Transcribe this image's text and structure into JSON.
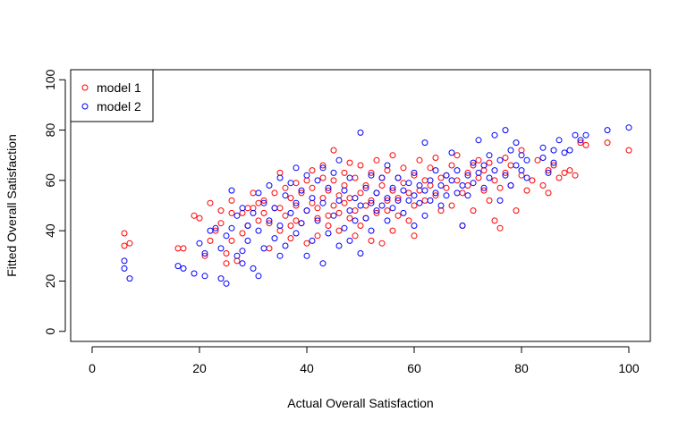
{
  "chart_data": {
    "type": "scatter",
    "title": "",
    "xlabel": "Actual Overall Satisfaction",
    "ylabel": "Fitted Overall Satisfaction",
    "xlim": [
      -4,
      104
    ],
    "ylim": [
      -4,
      104
    ],
    "xticks": [
      0,
      20,
      40,
      60,
      80,
      100
    ],
    "yticks": [
      0,
      20,
      40,
      60,
      80,
      100
    ],
    "grid": false,
    "legend": {
      "position": "top-left",
      "box": true
    },
    "series": [
      {
        "name": "model 1",
        "color": "#ff0000",
        "marker": "open-circle",
        "points": [
          [
            6,
            39
          ],
          [
            6,
            34
          ],
          [
            7,
            35
          ],
          [
            16,
            33
          ],
          [
            17,
            33
          ],
          [
            19,
            46
          ],
          [
            20,
            45
          ],
          [
            21,
            30
          ],
          [
            22,
            36
          ],
          [
            22,
            51
          ],
          [
            23,
            40
          ],
          [
            24,
            43
          ],
          [
            24,
            48
          ],
          [
            25,
            31
          ],
          [
            25,
            27
          ],
          [
            26,
            36
          ],
          [
            26,
            47
          ],
          [
            26,
            52
          ],
          [
            27,
            28
          ],
          [
            28,
            39
          ],
          [
            28,
            47
          ],
          [
            29,
            49
          ],
          [
            29,
            42
          ],
          [
            30,
            55
          ],
          [
            30,
            49
          ],
          [
            31,
            51
          ],
          [
            31,
            44
          ],
          [
            32,
            47
          ],
          [
            32,
            52
          ],
          [
            33,
            33
          ],
          [
            33,
            43
          ],
          [
            34,
            49
          ],
          [
            34,
            55
          ],
          [
            35,
            63
          ],
          [
            35,
            40
          ],
          [
            35,
            49
          ],
          [
            36,
            57
          ],
          [
            36,
            46
          ],
          [
            37,
            37
          ],
          [
            37,
            53
          ],
          [
            37,
            42
          ],
          [
            38,
            59
          ],
          [
            38,
            44
          ],
          [
            38,
            50
          ],
          [
            39,
            55
          ],
          [
            39,
            43
          ],
          [
            40,
            60
          ],
          [
            40,
            48
          ],
          [
            40,
            35
          ],
          [
            41,
            51
          ],
          [
            41,
            57
          ],
          [
            41,
            64
          ],
          [
            42,
            49
          ],
          [
            42,
            45
          ],
          [
            42,
            38
          ],
          [
            43,
            61
          ],
          [
            43,
            53
          ],
          [
            43,
            66
          ],
          [
            44,
            46
          ],
          [
            44,
            56
          ],
          [
            44,
            42
          ],
          [
            45,
            72
          ],
          [
            45,
            50
          ],
          [
            45,
            60
          ],
          [
            46,
            54
          ],
          [
            46,
            40
          ],
          [
            46,
            47
          ],
          [
            47,
            58
          ],
          [
            47,
            63
          ],
          [
            47,
            51
          ],
          [
            48,
            45
          ],
          [
            48,
            67
          ],
          [
            48,
            53
          ],
          [
            49,
            61
          ],
          [
            49,
            48
          ],
          [
            49,
            38
          ],
          [
            50,
            55
          ],
          [
            50,
            66
          ],
          [
            50,
            42
          ],
          [
            51,
            50
          ],
          [
            51,
            58
          ],
          [
            51,
            45
          ],
          [
            52,
            63
          ],
          [
            52,
            52
          ],
          [
            52,
            36
          ],
          [
            53,
            68
          ],
          [
            53,
            55
          ],
          [
            53,
            47
          ],
          [
            54,
            61
          ],
          [
            54,
            58
          ],
          [
            54,
            35
          ],
          [
            55,
            48
          ],
          [
            55,
            64
          ],
          [
            55,
            52
          ],
          [
            56,
            56
          ],
          [
            56,
            70
          ],
          [
            56,
            40
          ],
          [
            57,
            53
          ],
          [
            57,
            61
          ],
          [
            57,
            46
          ],
          [
            58,
            65
          ],
          [
            58,
            59
          ],
          [
            59,
            55
          ],
          [
            59,
            44
          ],
          [
            60,
            62
          ],
          [
            60,
            50
          ],
          [
            60,
            38
          ],
          [
            61,
            68
          ],
          [
            61,
            56
          ],
          [
            62,
            60
          ],
          [
            62,
            52
          ],
          [
            63,
            65
          ],
          [
            63,
            58
          ],
          [
            64,
            54
          ],
          [
            64,
            69
          ],
          [
            65,
            61
          ],
          [
            65,
            48
          ],
          [
            66,
            62
          ],
          [
            66,
            57
          ],
          [
            67,
            66
          ],
          [
            67,
            50
          ],
          [
            68,
            60
          ],
          [
            68,
            70
          ],
          [
            69,
            55
          ],
          [
            69,
            42
          ],
          [
            70,
            63
          ],
          [
            70,
            58
          ],
          [
            71,
            66
          ],
          [
            71,
            48
          ],
          [
            72,
            61
          ],
          [
            72,
            68
          ],
          [
            73,
            64
          ],
          [
            73,
            56
          ],
          [
            74,
            67
          ],
          [
            74,
            52
          ],
          [
            75,
            44
          ],
          [
            75,
            60
          ],
          [
            76,
            41
          ],
          [
            76,
            57
          ],
          [
            77,
            63
          ],
          [
            77,
            69
          ],
          [
            78,
            58
          ],
          [
            78,
            66
          ],
          [
            79,
            48
          ],
          [
            80,
            62
          ],
          [
            80,
            72
          ],
          [
            81,
            56
          ],
          [
            82,
            60
          ],
          [
            83,
            68
          ],
          [
            84,
            58
          ],
          [
            85,
            55
          ],
          [
            85,
            64
          ],
          [
            86,
            66
          ],
          [
            87,
            61
          ],
          [
            88,
            63
          ],
          [
            89,
            64
          ],
          [
            90,
            62
          ],
          [
            91,
            75
          ],
          [
            92,
            74
          ],
          [
            96,
            75
          ],
          [
            100,
            72
          ]
        ]
      },
      {
        "name": "model 2",
        "color": "#0000ff",
        "marker": "open-circle",
        "points": [
          [
            6,
            28
          ],
          [
            6,
            25
          ],
          [
            7,
            21
          ],
          [
            16,
            26
          ],
          [
            17,
            25
          ],
          [
            19,
            23
          ],
          [
            20,
            35
          ],
          [
            21,
            31
          ],
          [
            21,
            22
          ],
          [
            22,
            40
          ],
          [
            23,
            41
          ],
          [
            24,
            21
          ],
          [
            24,
            33
          ],
          [
            25,
            19
          ],
          [
            25,
            38
          ],
          [
            26,
            56
          ],
          [
            26,
            41
          ],
          [
            27,
            30
          ],
          [
            27,
            46
          ],
          [
            28,
            32
          ],
          [
            28,
            27
          ],
          [
            28,
            49
          ],
          [
            29,
            36
          ],
          [
            29,
            42
          ],
          [
            30,
            25
          ],
          [
            30,
            47
          ],
          [
            31,
            22
          ],
          [
            31,
            55
          ],
          [
            31,
            40
          ],
          [
            32,
            33
          ],
          [
            32,
            51
          ],
          [
            33,
            44
          ],
          [
            33,
            58
          ],
          [
            34,
            37
          ],
          [
            34,
            49
          ],
          [
            35,
            30
          ],
          [
            35,
            61
          ],
          [
            35,
            42
          ],
          [
            36,
            54
          ],
          [
            36,
            34
          ],
          [
            37,
            47
          ],
          [
            37,
            59
          ],
          [
            38,
            39
          ],
          [
            38,
            51
          ],
          [
            38,
            65
          ],
          [
            39,
            43
          ],
          [
            39,
            56
          ],
          [
            40,
            30
          ],
          [
            40,
            62
          ],
          [
            40,
            48
          ],
          [
            41,
            36
          ],
          [
            41,
            53
          ],
          [
            42,
            44
          ],
          [
            42,
            60
          ],
          [
            43,
            27
          ],
          [
            43,
            51
          ],
          [
            43,
            65
          ],
          [
            44,
            39
          ],
          [
            44,
            57
          ],
          [
            45,
            46
          ],
          [
            45,
            63
          ],
          [
            46,
            34
          ],
          [
            46,
            52
          ],
          [
            46,
            68
          ],
          [
            47,
            41
          ],
          [
            47,
            56
          ],
          [
            48,
            48
          ],
          [
            48,
            61
          ],
          [
            48,
            36
          ],
          [
            49,
            53
          ],
          [
            49,
            44
          ],
          [
            50,
            79
          ],
          [
            50,
            50
          ],
          [
            50,
            31
          ],
          [
            51,
            57
          ],
          [
            51,
            45
          ],
          [
            52,
            62
          ],
          [
            52,
            51
          ],
          [
            52,
            40
          ],
          [
            53,
            55
          ],
          [
            53,
            48
          ],
          [
            54,
            61
          ],
          [
            54,
            50
          ],
          [
            55,
            53
          ],
          [
            55,
            44
          ],
          [
            55,
            66
          ],
          [
            56,
            57
          ],
          [
            56,
            49
          ],
          [
            57,
            52
          ],
          [
            57,
            61
          ],
          [
            58,
            56
          ],
          [
            58,
            47
          ],
          [
            59,
            59
          ],
          [
            59,
            52
          ],
          [
            60,
            54
          ],
          [
            60,
            63
          ],
          [
            60,
            42
          ],
          [
            61,
            58
          ],
          [
            61,
            51
          ],
          [
            62,
            56
          ],
          [
            62,
            75
          ],
          [
            62,
            46
          ],
          [
            63,
            60
          ],
          [
            63,
            52
          ],
          [
            64,
            64
          ],
          [
            64,
            55
          ],
          [
            65,
            58
          ],
          [
            65,
            50
          ],
          [
            66,
            62
          ],
          [
            66,
            54
          ],
          [
            67,
            60
          ],
          [
            67,
            71
          ],
          [
            68,
            55
          ],
          [
            68,
            64
          ],
          [
            69,
            58
          ],
          [
            69,
            42
          ],
          [
            70,
            62
          ],
          [
            70,
            54
          ],
          [
            71,
            67
          ],
          [
            71,
            59
          ],
          [
            72,
            63
          ],
          [
            72,
            76
          ],
          [
            73,
            57
          ],
          [
            73,
            66
          ],
          [
            74,
            61
          ],
          [
            74,
            70
          ],
          [
            75,
            78
          ],
          [
            75,
            64
          ],
          [
            76,
            52
          ],
          [
            76,
            68
          ],
          [
            77,
            80
          ],
          [
            77,
            62
          ],
          [
            78,
            72
          ],
          [
            78,
            58
          ],
          [
            79,
            66
          ],
          [
            79,
            75
          ],
          [
            80,
            70
          ],
          [
            80,
            64
          ],
          [
            81,
            68
          ],
          [
            81,
            61
          ],
          [
            84,
            73
          ],
          [
            84,
            69
          ],
          [
            85,
            63
          ],
          [
            86,
            72
          ],
          [
            86,
            67
          ],
          [
            87,
            76
          ],
          [
            88,
            71
          ],
          [
            89,
            72
          ],
          [
            90,
            78
          ],
          [
            91,
            76
          ],
          [
            92,
            78
          ],
          [
            96,
            80
          ],
          [
            100,
            81
          ]
        ]
      }
    ]
  }
}
